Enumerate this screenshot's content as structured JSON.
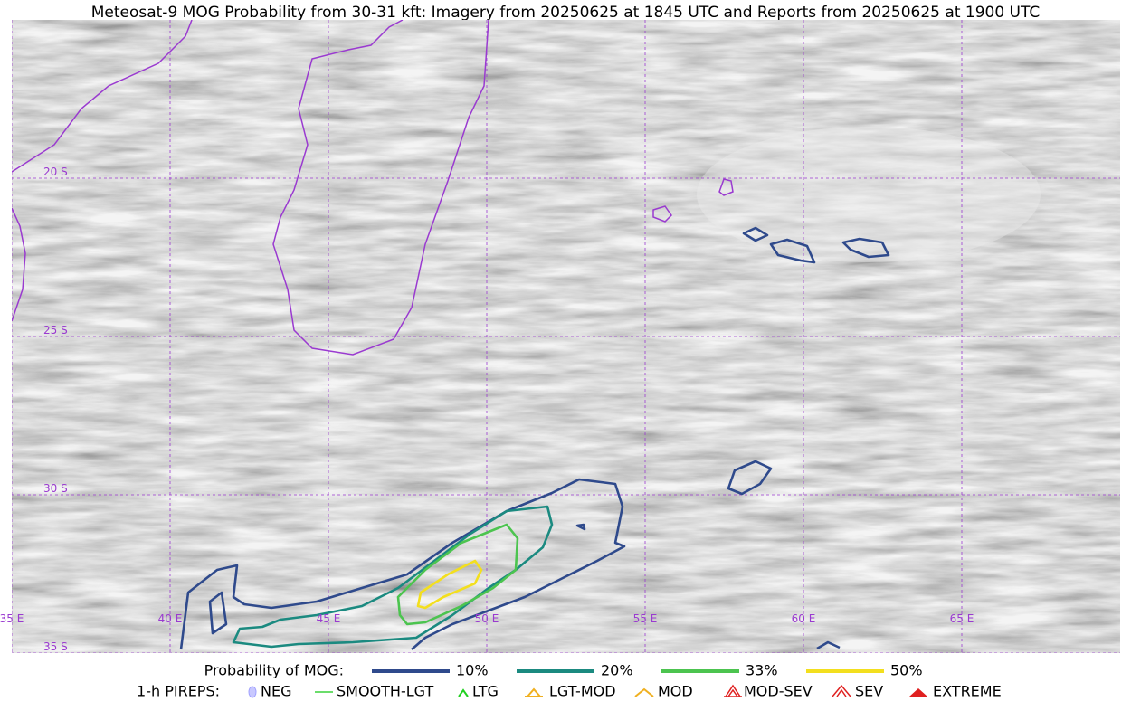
{
  "title": "Meteosat-9 MOG Probability from 30-31 kft: Imagery from 20250625 at 1845 UTC and Reports from 20250625 at 1900 UTC",
  "latitude_labels": [
    "20 S",
    "25 S",
    "30 S",
    "35 S"
  ],
  "longitude_labels": [
    "35 E",
    "40 E",
    "45 E",
    "50 E",
    "55 E",
    "60 E",
    "65 E"
  ],
  "legend": {
    "probability": {
      "title": "Probability of MOG:",
      "items": [
        {
          "label": "10%",
          "color": "#2f4a8c"
        },
        {
          "label": "20%",
          "color": "#1b8a80"
        },
        {
          "label": "33%",
          "color": "#4cc44f"
        },
        {
          "label": "50%",
          "color": "#f3df1e"
        }
      ]
    },
    "pireps": {
      "title": "1-h PIREPS:",
      "items": [
        "NEG",
        "SMOOTH-LGT",
        "LTG",
        "LGT-MOD",
        "MOD",
        "MOD-SEV",
        "SEV",
        "EXTREME"
      ]
    }
  }
}
